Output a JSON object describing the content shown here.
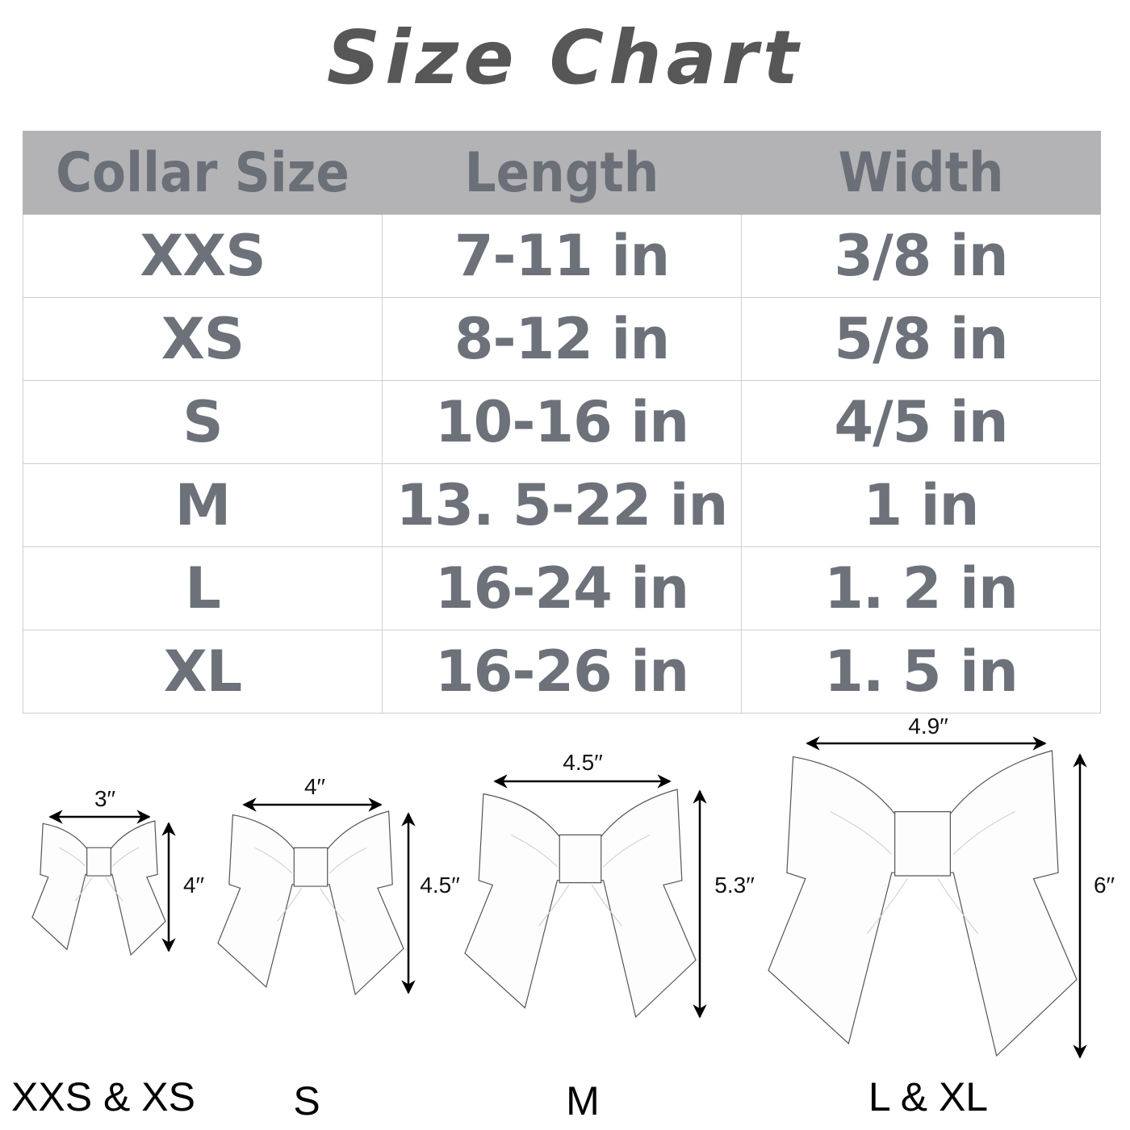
{
  "title": "Size Chart",
  "table": {
    "headers": [
      "Collar Size",
      "Length",
      "Width"
    ],
    "rows": [
      [
        "XXS",
        "7-11 in",
        "3/8 in"
      ],
      [
        "XS",
        "8-12 in",
        "5/8 in"
      ],
      [
        "S",
        "10-16 in",
        "4/5 in"
      ],
      [
        "M",
        "13. 5-22 in",
        "1 in"
      ],
      [
        "L",
        "16-24 in",
        "1. 2 in"
      ],
      [
        "XL",
        "16-26 in",
        "1. 5 in"
      ]
    ]
  },
  "bows": [
    {
      "size_label": "XXS & XS",
      "width": "3′′",
      "height": "4′′"
    },
    {
      "size_label": "S",
      "width": "4′′",
      "height": "4.5′′"
    },
    {
      "size_label": "M",
      "width": "4.5′′",
      "height": "5.3′′"
    },
    {
      "size_label": "L & XL",
      "width": "4.9′′",
      "height": "6′′"
    }
  ],
  "colors": {
    "header_bg": "#b3b3b5",
    "text_gray": "#6d717a",
    "title": "#575757"
  }
}
